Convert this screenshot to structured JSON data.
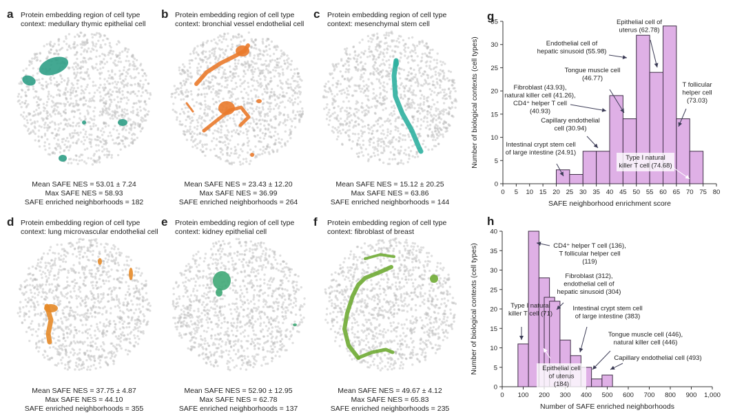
{
  "colors": {
    "dot": "#b8b8b8",
    "bar_fill": "#dfb0e6",
    "bar_edge": "#3c2c44",
    "panel_a": "#2f9f86",
    "panel_b": "#ea7a2b",
    "panel_c": "#2fb0a0",
    "panel_d": "#e58a28",
    "panel_e": "#3fa877",
    "panel_f": "#6fab34"
  },
  "panels": [
    {
      "letter": "a",
      "title1": "Protein embedding region of cell type",
      "title2": "context: medullary thymic epithelial cell",
      "mean": "Mean SAFE NES = 53.01 ± 7.24",
      "max": "Max SAFE NES = 58.93",
      "enriched": "SAFE enriched neighborhoods = 182"
    },
    {
      "letter": "b",
      "title1": "Protein embedding region of cell type",
      "title2": "context: bronchial vessel endothelial cell",
      "mean": "Mean SAFE NES = 23.43 ± 12.20",
      "max": "Max SAFE NES = 36.99",
      "enriched": "SAFE enriched neighborhoods = 264"
    },
    {
      "letter": "c",
      "title1": "Protein embedding region of cell type",
      "title2": "context: mesenchymal stem cell",
      "mean": "Mean SAFE NES = 15.12 ± 20.25",
      "max": "Max SAFE NES = 63.86",
      "enriched": "SAFE enriched neighborhoods = 144"
    },
    {
      "letter": "d",
      "title1": "Protein embedding region of cell type",
      "title2": "context: lung microvascular endothelial cell",
      "mean": "Mean SAFE NES = 37.75 ± 4.87",
      "max": "Max SAFE NES = 44.10",
      "enriched": "SAFE enriched neighborhoods = 355"
    },
    {
      "letter": "e",
      "title1": "Protein embedding region of cell type",
      "title2": "context: kidney epithelial cell",
      "mean": "Mean SAFE NES = 52.90 ± 12.95",
      "max": "Max SAFE NES = 62.78",
      "enriched": "SAFE enriched neighborhoods = 137"
    },
    {
      "letter": "f",
      "title1": "Protein embedding region of cell type",
      "title2": "context: fibroblast of breast",
      "mean": "Mean SAFE NES = 49.67 ± 4.12",
      "max": "Max SAFE NES = 65.83",
      "enriched": "SAFE enriched neighborhoods = 235"
    }
  ],
  "chart_data": [
    {
      "panel": "g",
      "type": "bar",
      "xlabel": "SAFE neighborhood enrichment score",
      "ylabel": "Number of biological contexts (cell types)",
      "bin_width": 5,
      "bins": [
        {
          "x0": 20,
          "value": 3
        },
        {
          "x0": 25,
          "value": 2
        },
        {
          "x0": 30,
          "value": 7
        },
        {
          "x0": 35,
          "value": 7
        },
        {
          "x0": 40,
          "value": 19
        },
        {
          "x0": 45,
          "value": 14
        },
        {
          "x0": 50,
          "value": 32
        },
        {
          "x0": 55,
          "value": 24
        },
        {
          "x0": 60,
          "value": 34
        },
        {
          "x0": 65,
          "value": 14
        },
        {
          "x0": 70,
          "value": 7
        }
      ],
      "xlim": [
        0,
        80
      ],
      "ylim": [
        0,
        35
      ],
      "xticks": [
        "0",
        "5",
        "10",
        "15",
        "20",
        "25",
        "30",
        "35",
        "40",
        "45",
        "50",
        "55",
        "60",
        "65",
        "70",
        "75",
        "80"
      ],
      "yticks": [
        "0",
        "5",
        "10",
        "15",
        "20",
        "25",
        "30",
        "35"
      ],
      "annotations": [
        {
          "text": "Epithelial cell of\nuterus (62.78)",
          "x": 62.78
        },
        {
          "text": "Endothelial cell of\nhepatic sinusoid (55.98)",
          "x": 55.98
        },
        {
          "text": "Tongue muscle cell\n(46.77)",
          "x": 46.77
        },
        {
          "text": "Fibroblast (43.93),\nnatural killer cell (41.26),\nCD4⁺ helper T cell\n(40.93)",
          "x": 41.26
        },
        {
          "text": "T follicular\nhelper cell\n(73.03)",
          "x": 73.03
        },
        {
          "text": "Capillary endothelial\ncell (30.94)",
          "x": 30.94
        },
        {
          "text": "Intestinal crypt stem cell\nof large intestine (24.91)",
          "x": 24.91
        },
        {
          "text": "Type I natural\nkiller T cell (74.68)",
          "x": 74.68
        }
      ]
    },
    {
      "panel": "h",
      "type": "bar",
      "xlabel": "Number of SAFE enriched neighborhoods",
      "ylabel": "Number of biological contexts (cell types)",
      "bin_width": 50,
      "bins": [
        {
          "x0": 50,
          "value": 0
        },
        {
          "x0": 75,
          "value": 11
        },
        {
          "x0": 125,
          "value": 40
        },
        {
          "x0": 175,
          "value": 28
        },
        {
          "x0": 200,
          "value": 23
        },
        {
          "x0": 225,
          "value": 22
        },
        {
          "x0": 275,
          "value": 12
        },
        {
          "x0": 325,
          "value": 8
        },
        {
          "x0": 375,
          "value": 5
        },
        {
          "x0": 425,
          "value": 2
        },
        {
          "x0": 475,
          "value": 3
        }
      ],
      "xlim": [
        0,
        1000
      ],
      "ylim": [
        0,
        40
      ],
      "xticks": [
        "0",
        "100",
        "200",
        "300",
        "400",
        "500",
        "600",
        "700",
        "800",
        "900",
        "1,000"
      ],
      "yticks": [
        "0",
        "5",
        "10",
        "15",
        "20",
        "25",
        "30",
        "35",
        "40"
      ],
      "annotations": [
        {
          "text": "CD4⁺ helper T cell (136),\nT follicular helper cell\n(119)",
          "x": 136
        },
        {
          "text": "Fibroblast (312),\nendothelial cell of\nhepatic sinusoid (304)",
          "x": 304
        },
        {
          "text": "Type I natural\nkiller T cell (71)",
          "x": 71
        },
        {
          "text": "Intestinal crypt stem cell\nof large intestine (383)",
          "x": 383
        },
        {
          "text": "Tongue muscle cell (446),\nnatural killer cell (446)",
          "x": 446
        },
        {
          "text": "Capillary endothelial cell (493)",
          "x": 493
        },
        {
          "text": "Epithelial cell\nof uterus\n(184)",
          "x": 184
        }
      ]
    }
  ],
  "panel_g_letter": "g",
  "panel_h_letter": "h"
}
